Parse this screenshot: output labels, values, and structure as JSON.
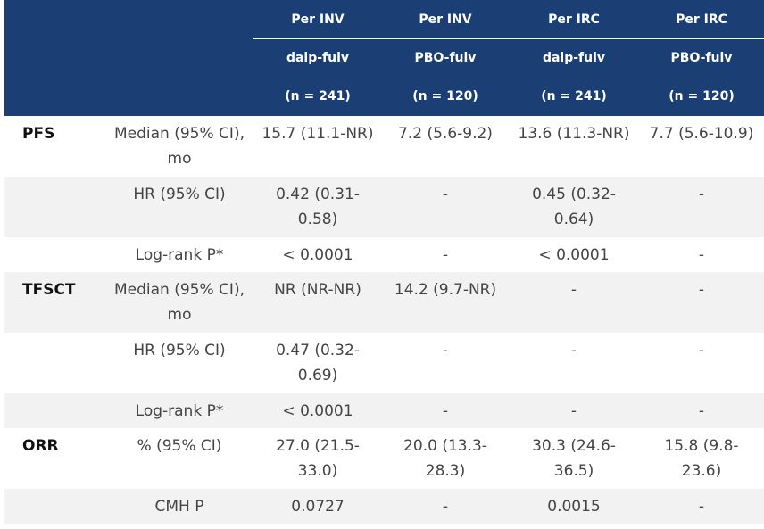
{
  "header": {
    "columns": [
      {
        "source": "Per INV",
        "arm": "dalp-fulv",
        "n": "(n = 241)"
      },
      {
        "source": "Per INV",
        "arm": "PBO-fulv",
        "n": "(n = 120)"
      },
      {
        "source": "Per IRC",
        "arm": "dalp-fulv",
        "n": "(n = 241)"
      },
      {
        "source": "Per IRC",
        "arm": "PBO-fulv",
        "n": "(n = 120)"
      }
    ]
  },
  "rows": [
    {
      "group": "PFS",
      "label": "Median (95% CI), mo",
      "values": [
        "15.7 (11.1-NR)",
        "7.2 (5.6-9.2)",
        "13.6 (11.3-NR)",
        "7.7 (5.6-10.9)"
      ]
    },
    {
      "group": "",
      "label": "HR (95% CI)",
      "values": [
        "0.42 (0.31-0.58)",
        "-",
        "0.45 (0.32-0.64)",
        "-"
      ]
    },
    {
      "group": "",
      "label": "Log-rank P*",
      "values": [
        "< 0.0001",
        "-",
        "< 0.0001",
        "-"
      ]
    },
    {
      "group": "TFSCT",
      "label": "Median (95% CI), mo",
      "values": [
        "NR (NR-NR)",
        "14.2 (9.7-NR)",
        "-",
        "-"
      ]
    },
    {
      "group": "",
      "label": "HR (95% CI)",
      "values": [
        "0.47 (0.32-0.69)",
        "-",
        "-",
        "-"
      ]
    },
    {
      "group": "",
      "label": "Log-rank P*",
      "values": [
        "< 0.0001",
        "-",
        "-",
        "-"
      ]
    },
    {
      "group": "ORR",
      "label": "% (95% CI)",
      "values": [
        "27.0 (21.5-33.0)",
        "20.0 (13.3-28.3)",
        "30.3 (24.6-36.5)",
        "15.8 (9.8-23.6)"
      ]
    },
    {
      "group": "",
      "label": "CMH P",
      "values": [
        "0.0727",
        "-",
        "0.0015",
        "-"
      ]
    }
  ],
  "colors": {
    "header_bg": "#1b3f74",
    "header_text": "#ffffff",
    "row_alt_bg": "#f2f2f2"
  }
}
